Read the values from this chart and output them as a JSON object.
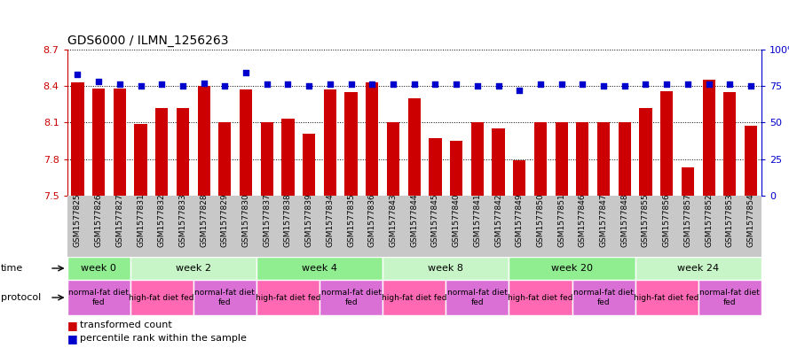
{
  "title": "GDS6000 / ILMN_1256263",
  "samples": [
    "GSM1577825",
    "GSM1577826",
    "GSM1577827",
    "GSM1577831",
    "GSM1577832",
    "GSM1577833",
    "GSM1577828",
    "GSM1577829",
    "GSM1577830",
    "GSM1577837",
    "GSM1577838",
    "GSM1577839",
    "GSM1577834",
    "GSM1577835",
    "GSM1577836",
    "GSM1577843",
    "GSM1577844",
    "GSM1577845",
    "GSM1577840",
    "GSM1577841",
    "GSM1577842",
    "GSM1577849",
    "GSM1577850",
    "GSM1577851",
    "GSM1577846",
    "GSM1577847",
    "GSM1577848",
    "GSM1577855",
    "GSM1577856",
    "GSM1577857",
    "GSM1577852",
    "GSM1577853",
    "GSM1577854"
  ],
  "red_values": [
    8.43,
    8.38,
    8.38,
    8.09,
    8.22,
    8.22,
    8.4,
    8.1,
    8.37,
    8.1,
    8.13,
    8.01,
    8.37,
    8.35,
    8.43,
    8.1,
    8.3,
    7.97,
    7.95,
    8.1,
    8.05,
    7.79,
    8.1,
    8.1,
    8.1,
    8.1,
    8.1,
    8.22,
    8.36,
    7.73,
    8.45,
    8.35,
    8.07
  ],
  "blue_values": [
    83,
    78,
    76,
    75,
    76,
    75,
    77,
    75,
    84,
    76,
    76,
    75,
    76,
    76,
    76,
    76,
    76,
    76,
    76,
    75,
    75,
    72,
    76,
    76,
    76,
    75,
    75,
    76,
    76,
    76,
    76,
    76,
    75
  ],
  "ylim_left": [
    7.5,
    8.7
  ],
  "ylim_right": [
    0,
    100
  ],
  "yticks_left": [
    7.5,
    7.8,
    8.1,
    8.4,
    8.7
  ],
  "yticks_right": [
    0,
    25,
    50,
    75,
    100
  ],
  "time_groups": [
    {
      "label": "week 0",
      "start": 0,
      "end": 3,
      "color": "#90EE90"
    },
    {
      "label": "week 2",
      "start": 3,
      "end": 9,
      "color": "#c8f5c8"
    },
    {
      "label": "week 4",
      "start": 9,
      "end": 15,
      "color": "#90EE90"
    },
    {
      "label": "week 8",
      "start": 15,
      "end": 21,
      "color": "#c8f5c8"
    },
    {
      "label": "week 20",
      "start": 21,
      "end": 27,
      "color": "#90EE90"
    },
    {
      "label": "week 24",
      "start": 27,
      "end": 33,
      "color": "#c8f5c8"
    }
  ],
  "protocol_groups": [
    {
      "label": "normal-fat diet\nfed",
      "start": 0,
      "end": 3,
      "color": "#DA70D6"
    },
    {
      "label": "high-fat diet fed",
      "start": 3,
      "end": 6,
      "color": "#FF69B4"
    },
    {
      "label": "normal-fat diet\nfed",
      "start": 6,
      "end": 9,
      "color": "#DA70D6"
    },
    {
      "label": "high-fat diet fed",
      "start": 9,
      "end": 12,
      "color": "#FF69B4"
    },
    {
      "label": "normal-fat diet\nfed",
      "start": 12,
      "end": 15,
      "color": "#DA70D6"
    },
    {
      "label": "high-fat diet fed",
      "start": 15,
      "end": 18,
      "color": "#FF69B4"
    },
    {
      "label": "normal-fat diet\nfed",
      "start": 18,
      "end": 21,
      "color": "#DA70D6"
    },
    {
      "label": "high-fat diet fed",
      "start": 21,
      "end": 24,
      "color": "#FF69B4"
    },
    {
      "label": "normal-fat diet\nfed",
      "start": 24,
      "end": 27,
      "color": "#DA70D6"
    },
    {
      "label": "high-fat diet fed",
      "start": 27,
      "end": 30,
      "color": "#FF69B4"
    },
    {
      "label": "normal-fat diet\nfed",
      "start": 30,
      "end": 33,
      "color": "#DA70D6"
    }
  ],
  "bar_color": "#CC0000",
  "dot_color": "#0000CC",
  "xtick_bg_color": "#C8C8C8",
  "left_axis_color": "#CC0000",
  "right_axis_color": "#0000CC"
}
